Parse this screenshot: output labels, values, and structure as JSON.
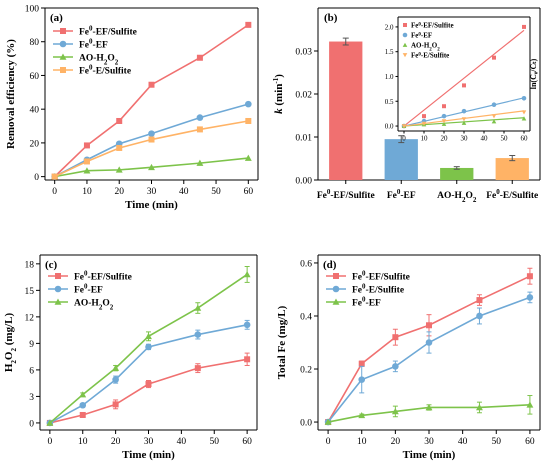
{
  "colors": {
    "red": "#f07070",
    "blue": "#6fa9d6",
    "green": "#7dc34a",
    "orange": "#ffb366"
  },
  "chart_data": [
    {
      "panel": "(a)",
      "type": "line",
      "xlabel": "Time (min)",
      "ylabel": "Removal efficiency (%)",
      "xlim": [
        -3,
        63
      ],
      "ylim": [
        -2,
        100
      ],
      "xticks": [
        0,
        10,
        20,
        30,
        40,
        50,
        60
      ],
      "yticks": [
        0,
        20,
        40,
        60,
        80,
        100
      ],
      "legend_position": "top-left",
      "x": [
        0,
        10,
        20,
        30,
        45,
        60
      ],
      "series": [
        {
          "base": "Fe",
          "sup": "0",
          "tail": "-EF/Sulfite",
          "color": "red",
          "marker": "square",
          "values": [
            0,
            18.5,
            33,
            54.5,
            70.5,
            90
          ]
        },
        {
          "base": "Fe",
          "sup": "0",
          "tail": "-EF",
          "color": "blue",
          "marker": "circle",
          "values": [
            0,
            10,
            19.5,
            25.5,
            35,
            43
          ]
        },
        {
          "base": "AO-H",
          "sub": "2",
          "mid": "O",
          "sub2": "2",
          "tail": "",
          "color": "green",
          "marker": "triangle",
          "values": [
            0,
            3.5,
            4,
            5.5,
            8,
            11
          ]
        },
        {
          "base": "Fe",
          "sup": "0",
          "tail": "-E/Sulfite",
          "color": "orange",
          "marker": "square",
          "values": [
            0,
            9,
            17,
            22,
            28,
            33
          ]
        }
      ]
    },
    {
      "panel": "(b)",
      "type": "bar",
      "ylabel_italic": "k",
      "ylabel_rest": " (min",
      "ylabel_sup": "-1",
      "ylabel_end": ")",
      "ylim": [
        0,
        0.04
      ],
      "yticks": [
        0.0,
        0.01,
        0.02,
        0.03
      ],
      "ytick_labels": [
        "0.00",
        "0.01",
        "0.02",
        "0.03"
      ],
      "categories": [
        {
          "base": "Fe",
          "sup": "0",
          "tail": "-EF/Sulfite"
        },
        {
          "base": "Fe",
          "sup": "0",
          "tail": "-EF"
        },
        {
          "base": "AO-H",
          "sub": "2",
          "mid": "O",
          "sub2": "2",
          "tail": ""
        },
        {
          "base": "Fe",
          "sup": "0",
          "tail": "-E/Sulfite"
        }
      ],
      "bar_colors": [
        "red",
        "blue",
        "green",
        "orange"
      ],
      "values": [
        0.0322,
        0.0095,
        0.0028,
        0.0051
      ],
      "errors": [
        0.0008,
        0.0008,
        0.0003,
        0.0006
      ],
      "inset": {
        "type": "scatter",
        "ylabel": "ln(C₀/Cₜ)",
        "xlim": [
          -3,
          63
        ],
        "ylim": [
          -0.1,
          2.2
        ],
        "xticks": [
          0,
          10,
          20,
          30,
          40,
          50,
          60
        ],
        "yticks": [
          0.0,
          0.5,
          1.0,
          1.5,
          2.0
        ],
        "ytick_labels": [
          "0.0",
          "0.5",
          "1.0",
          "1.5",
          "2.0"
        ],
        "x": [
          0,
          10,
          20,
          30,
          45,
          60
        ],
        "series": [
          {
            "base": "Fe",
            "sup": "0",
            "tail": "-EF/Sulfite",
            "color": "red",
            "marker": "square",
            "values": [
              0,
              0.2,
              0.4,
              0.82,
              1.38,
              2.0
            ],
            "fit": [
              0.0322,
              0
            ]
          },
          {
            "base": "Fe",
            "sup": "0",
            "tail": "-EF",
            "color": "blue",
            "marker": "circle",
            "values": [
              0,
              0.1,
              0.2,
              0.3,
              0.43,
              0.56
            ],
            "fit": [
              0.0095,
              0
            ]
          },
          {
            "base": "AO-H",
            "sub": "2",
            "mid": "O",
            "sub2": "2",
            "tail": "",
            "color": "green",
            "marker": "triangle",
            "values": [
              0,
              0.03,
              0.04,
              0.06,
              0.09,
              0.15
            ],
            "fit": [
              0.0028,
              0
            ]
          },
          {
            "base": "Fe",
            "sup": "0",
            "tail": "-E/Sulfite",
            "color": "orange",
            "marker": "triangle-down",
            "values": [
              0,
              0.05,
              0.1,
              0.14,
              0.2,
              0.28
            ],
            "fit": [
              0.0051,
              0
            ]
          }
        ]
      }
    },
    {
      "panel": "(c)",
      "type": "line",
      "xlabel": "Time (min)",
      "ylabel_base": "H",
      "ylabel_sub": "2",
      "ylabel_mid": "O",
      "ylabel_sub2": "2",
      "ylabel_end": " (mg/L)",
      "xlim": [
        -3,
        63
      ],
      "ylim": [
        -0.8,
        19
      ],
      "xticks": [
        0,
        10,
        20,
        30,
        40,
        50,
        60
      ],
      "yticks": [
        0,
        3,
        6,
        9,
        12,
        15,
        18
      ],
      "legend_position": "top-left",
      "x": [
        0,
        10,
        20,
        30,
        45,
        60
      ],
      "series": [
        {
          "base": "Fe",
          "sup": "0",
          "tail": "-EF/Sulfite",
          "color": "red",
          "marker": "square",
          "values": [
            0,
            0.9,
            2.1,
            4.4,
            6.2,
            7.2
          ],
          "err": [
            0,
            0.2,
            0.5,
            0.4,
            0.5,
            0.7
          ]
        },
        {
          "base": "Fe",
          "sup": "0",
          "tail": "-EF",
          "color": "blue",
          "marker": "circle",
          "values": [
            0,
            2.0,
            4.9,
            8.6,
            10.0,
            11.1
          ],
          "err": [
            0,
            0.2,
            0.4,
            0.3,
            0.5,
            0.5
          ]
        },
        {
          "base": "AO-H",
          "sub": "2",
          "mid": "O",
          "sub2": "2",
          "tail": "",
          "color": "green",
          "marker": "triangle",
          "values": [
            0,
            3.2,
            6.2,
            9.8,
            13.0,
            16.8
          ],
          "err": [
            0,
            0.2,
            0.3,
            0.5,
            0.6,
            0.9
          ]
        }
      ]
    },
    {
      "panel": "(d)",
      "type": "line",
      "xlabel": "Time (min)",
      "ylabel": "Total Fe (mg/L)",
      "xlim": [
        -3,
        63
      ],
      "ylim": [
        -0.03,
        0.63
      ],
      "xticks": [
        0,
        10,
        20,
        30,
        40,
        50,
        60
      ],
      "yticks": [
        0.0,
        0.2,
        0.4,
        0.6
      ],
      "ytick_labels": [
        "0.0",
        "0.2",
        "0.4",
        "0.6"
      ],
      "legend_position": "top-left",
      "x": [
        0,
        10,
        20,
        30,
        45,
        60
      ],
      "series": [
        {
          "base": "Fe",
          "sup": "0",
          "tail": "-EF/Sulfite",
          "color": "red",
          "marker": "square",
          "values": [
            0,
            0.22,
            0.32,
            0.365,
            0.46,
            0.55
          ],
          "err": [
            0,
            0.01,
            0.03,
            0.04,
            0.02,
            0.03
          ]
        },
        {
          "base": "Fe",
          "sup": "0",
          "tail": "-E/Sulfite",
          "color": "blue",
          "marker": "circle",
          "values": [
            0,
            0.16,
            0.21,
            0.3,
            0.4,
            0.47
          ],
          "err": [
            0,
            0.05,
            0.02,
            0.04,
            0.03,
            0.02
          ]
        },
        {
          "base": "Fe",
          "sup": "0",
          "tail": "-EF",
          "color": "green",
          "marker": "triangle",
          "values": [
            0,
            0.025,
            0.04,
            0.055,
            0.055,
            0.065
          ],
          "err": [
            0,
            0.005,
            0.02,
            0.01,
            0.02,
            0.035
          ]
        }
      ]
    }
  ]
}
